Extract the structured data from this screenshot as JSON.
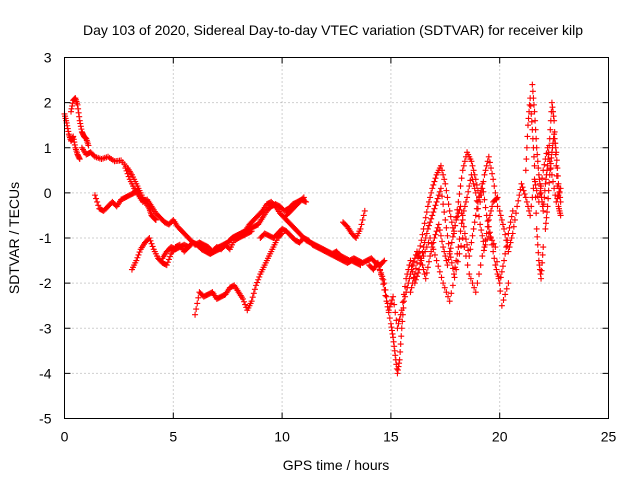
{
  "chart_data": {
    "type": "scatter",
    "title": "Day 103 of 2020, Sidereal Day-to-day VTEC variation (SDTVAR) for receiver kilp",
    "xlabel": "GPS time / hours",
    "ylabel": "SDTVAR / TECUs",
    "xlim": [
      0,
      25
    ],
    "ylim": [
      -5,
      3
    ],
    "xticks": [
      0,
      5,
      10,
      15,
      20,
      25
    ],
    "yticks": [
      -5,
      -4,
      -3,
      -2,
      -1,
      0,
      1,
      2,
      3
    ],
    "grid": true,
    "marker": "+",
    "series": [
      {
        "name": "SDTVAR",
        "color": "#ff0000",
        "segments": [
          {
            "x": [
              0.0,
              0.1,
              0.2,
              0.3,
              0.4,
              0.5,
              0.6,
              0.7
            ],
            "y": [
              1.75,
              1.55,
              1.3,
              1.15,
              1.25,
              1.0,
              0.85,
              0.75
            ]
          },
          {
            "x": [
              0.3,
              0.4,
              0.5,
              0.6,
              0.7,
              0.8,
              0.9,
              1.0,
              1.1
            ],
            "y": [
              1.8,
              2.05,
              2.1,
              1.95,
              1.6,
              1.35,
              1.25,
              1.2,
              1.05
            ]
          },
          {
            "x": [
              0.8,
              1.0,
              1.2,
              1.4,
              1.7,
              2.0,
              2.3,
              2.6,
              2.9,
              3.1,
              3.3,
              3.5,
              3.7,
              3.9,
              4.0,
              4.1,
              4.2
            ],
            "y": [
              1.0,
              0.85,
              0.9,
              0.8,
              0.75,
              0.8,
              0.7,
              0.72,
              0.55,
              0.4,
              0.2,
              0.0,
              -0.2,
              -0.35,
              -0.5,
              -0.55,
              -0.6
            ]
          },
          {
            "x": [
              2.8,
              3.0,
              3.2,
              3.4,
              3.6,
              3.8,
              4.0,
              4.2,
              4.4,
              4.6,
              4.8,
              5.0,
              5.2,
              5.4,
              5.6,
              5.8,
              6.0,
              6.2,
              6.4,
              6.6,
              6.8,
              7.0,
              7.2,
              7.4,
              7.6,
              7.8,
              8.0,
              8.2,
              8.4,
              8.6
            ],
            "y": [
              0.55,
              0.3,
              0.1,
              -0.05,
              -0.2,
              -0.15,
              -0.3,
              -0.45,
              -0.55,
              -0.65,
              -0.7,
              -0.6,
              -0.75,
              -0.85,
              -0.95,
              -1.05,
              -1.15,
              -1.1,
              -1.15,
              -1.2,
              -1.3,
              -1.2,
              -1.25,
              -1.15,
              -1.25,
              -1.05,
              -1.0,
              -0.95,
              -0.9,
              -0.85
            ]
          },
          {
            "x": [
              1.4,
              1.6,
              1.8,
              2.0,
              2.2,
              2.4,
              2.6,
              2.8,
              3.0,
              3.2,
              3.4
            ],
            "y": [
              -0.05,
              -0.35,
              -0.4,
              -0.3,
              -0.2,
              -0.3,
              -0.15,
              -0.1,
              -0.05,
              0.0,
              0.05
            ]
          },
          {
            "x": [
              3.1,
              3.3,
              3.5,
              3.7,
              3.9,
              4.1,
              4.3,
              4.5,
              4.7,
              4.9,
              5.1,
              5.3,
              5.5,
              5.7,
              5.9,
              6.1,
              6.3,
              6.5,
              6.7,
              6.9,
              7.1,
              7.3,
              7.5,
              7.7,
              7.9,
              8.1,
              8.3,
              8.5,
              8.7,
              8.9,
              9.1,
              9.3,
              9.5,
              9.7,
              9.9,
              10.1,
              10.3,
              10.5,
              10.7,
              10.9,
              11.1
            ],
            "y": [
              -1.7,
              -1.5,
              -1.25,
              -1.1,
              -1.0,
              -1.25,
              -1.45,
              -1.55,
              -1.6,
              -1.35,
              -1.2,
              -1.15,
              -1.3,
              -1.2,
              -1.1,
              -1.15,
              -1.2,
              -1.3,
              -1.35,
              -1.25,
              -1.2,
              -1.15,
              -1.1,
              -1.0,
              -0.95,
              -0.9,
              -0.85,
              -0.8,
              -0.75,
              -0.7,
              -0.55,
              -0.4,
              -0.3,
              -0.25,
              -0.3,
              -0.4,
              -0.35,
              -0.25,
              -0.2,
              -0.15,
              -0.2
            ]
          },
          {
            "x": [
              4.5,
              4.7,
              4.9,
              5.1,
              5.3,
              5.5,
              5.7,
              5.9,
              6.1,
              6.3,
              6.5,
              6.7,
              6.9,
              7.1,
              7.3,
              7.5,
              7.7,
              7.9,
              8.1,
              8.3,
              8.5,
              8.7,
              8.9,
              9.1,
              9.3,
              9.5,
              9.7,
              9.9,
              10.1,
              10.3,
              10.5,
              10.7,
              10.9,
              11.1,
              11.3,
              11.5,
              11.7,
              11.9,
              12.1,
              12.3,
              12.5,
              12.7,
              12.9,
              13.1,
              13.3,
              13.5,
              13.7,
              13.9,
              14.1,
              14.3,
              14.5,
              14.7
            ],
            "y": [
              -1.45,
              -1.3,
              -1.2,
              -1.25,
              -1.2,
              -1.15,
              -1.2,
              -1.1,
              -1.15,
              -1.25,
              -1.3,
              -1.35,
              -1.3,
              -1.25,
              -1.2,
              -1.1,
              -1.0,
              -0.95,
              -0.9,
              -0.85,
              -0.7,
              -0.6,
              -0.5,
              -0.4,
              -0.25,
              -0.2,
              -0.3,
              -0.45,
              -0.55,
              -0.65,
              -0.75,
              -0.85,
              -0.95,
              -1.05,
              -1.1,
              -1.15,
              -1.2,
              -1.25,
              -1.3,
              -1.35,
              -1.3,
              -1.4,
              -1.45,
              -1.5,
              -1.45,
              -1.5,
              -1.55,
              -1.5,
              -1.45,
              -1.55,
              -1.6,
              -1.5
            ]
          },
          {
            "x": [
              9.0,
              9.2,
              9.4,
              9.6,
              9.8,
              10.0,
              10.2,
              10.4,
              10.6,
              10.8,
              11.0,
              11.2,
              11.4,
              11.6,
              11.8,
              12.0,
              12.2,
              12.4,
              12.6,
              12.8,
              13.0,
              13.2,
              13.4,
              13.6
            ],
            "y": [
              -1.0,
              -0.9,
              -0.95,
              -1.0,
              -0.9,
              -0.8,
              -0.85,
              -0.95,
              -1.05,
              -1.1,
              -1.0,
              -1.05,
              -1.15,
              -1.2,
              -1.25,
              -1.3,
              -1.35,
              -1.4,
              -1.45,
              -1.5,
              -1.55,
              -1.5,
              -1.55,
              -1.6
            ]
          },
          {
            "x": [
              6.0,
              6.2,
              6.4,
              6.6,
              6.8,
              7.0,
              7.2,
              7.4,
              7.6,
              7.8,
              8.0,
              8.2,
              8.4,
              8.6,
              8.8,
              9.0,
              9.2,
              9.4,
              9.6,
              9.8,
              10.0
            ],
            "y": [
              -2.7,
              -2.2,
              -2.3,
              -2.25,
              -2.2,
              -2.35,
              -2.3,
              -2.25,
              -2.1,
              -2.05,
              -2.2,
              -2.35,
              -2.6,
              -2.4,
              -2.05,
              -1.8,
              -1.6,
              -1.4,
              -1.2,
              -1.0,
              -0.9
            ]
          },
          {
            "x": [
              10.2,
              10.4,
              10.6,
              10.8,
              11.0
            ],
            "y": [
              -0.5,
              -0.4,
              -0.3,
              -0.2,
              -0.1
            ]
          },
          {
            "x": [
              12.8,
              13.0,
              13.2,
              13.4,
              13.6,
              13.8
            ],
            "y": [
              -0.65,
              -0.75,
              -0.9,
              -1.0,
              -0.8,
              -0.4
            ]
          },
          {
            "x": [
              14.0,
              14.2,
              14.4,
              14.6,
              14.8,
              15.0,
              15.1,
              15.2,
              15.3,
              15.4,
              15.5,
              15.6,
              15.8,
              16.0,
              16.2,
              16.4,
              16.6,
              16.8,
              17.0,
              17.2,
              17.4,
              17.6,
              17.8,
              18.0,
              18.2,
              18.4,
              18.6,
              18.8,
              19.0,
              19.2,
              19.4,
              19.6,
              19.8,
              20.0,
              20.2,
              20.4,
              20.6
            ],
            "y": [
              -1.6,
              -1.7,
              -1.55,
              -1.9,
              -2.4,
              -2.9,
              -3.2,
              -3.6,
              -4.0,
              -3.7,
              -3.0,
              -2.4,
              -2.0,
              -1.6,
              -1.3,
              -1.5,
              -1.9,
              -1.4,
              -1.0,
              -0.7,
              -1.2,
              -1.6,
              -1.1,
              -0.6,
              -0.3,
              -0.9,
              -1.4,
              -0.8,
              -0.2,
              0.2,
              -0.5,
              -1.0,
              -1.6,
              -2.0,
              -1.5,
              -0.9,
              -0.4
            ]
          },
          {
            "x": [
              14.5,
              14.7,
              14.9,
              15.1,
              15.3,
              15.5,
              15.7,
              15.9,
              16.1,
              16.3,
              16.5,
              16.7,
              16.9,
              17.1,
              17.3,
              17.5,
              17.7,
              17.9,
              18.1,
              18.3,
              18.5,
              18.7,
              18.9,
              19.1,
              19.3,
              19.5,
              19.7,
              19.9
            ],
            "y": [
              -1.7,
              -2.0,
              -2.6,
              -2.3,
              -3.0,
              -2.6,
              -1.9,
              -1.5,
              -2.0,
              -1.7,
              -1.2,
              -0.8,
              -0.5,
              -0.2,
              0.1,
              -0.6,
              -1.3,
              -1.8,
              -1.2,
              -0.5,
              -0.1,
              0.4,
              0.0,
              -0.7,
              -1.2,
              -0.6,
              -0.2,
              -0.1
            ]
          },
          {
            "x": [
              15.9,
              16.1,
              16.3,
              16.5,
              16.7,
              16.9,
              17.1,
              17.3,
              17.5,
              17.7,
              17.9,
              18.1,
              18.3,
              18.5,
              18.7,
              18.9,
              19.1,
              19.3,
              19.5,
              19.7,
              19.9
            ],
            "y": [
              -2.2,
              -1.8,
              -1.3,
              -0.8,
              -0.3,
              0.1,
              0.4,
              0.6,
              0.2,
              -0.4,
              -0.9,
              -0.2,
              0.5,
              0.9,
              0.7,
              0.3,
              -0.2,
              0.4,
              0.8,
              0.3,
              -0.3
            ]
          },
          {
            "x": [
              16.5,
              16.8,
              17.1,
              17.4,
              17.7,
              18.0,
              18.3,
              18.6,
              18.9,
              19.2,
              19.5,
              19.8,
              20.1,
              20.4
            ],
            "y": [
              -1.4,
              -1.0,
              -1.5,
              -2.0,
              -2.4,
              -1.7,
              -1.0,
              -1.8,
              -2.2,
              -1.4,
              -0.9,
              -1.2,
              -2.5,
              -2.0
            ]
          },
          {
            "x": [
              20.0,
              20.2,
              20.4,
              20.6,
              20.8,
              21.0,
              21.2,
              21.4,
              21.6,
              21.8,
              22.0,
              22.2,
              22.4,
              22.6,
              22.8
            ],
            "y": [
              -0.4,
              -0.8,
              -1.3,
              -0.9,
              -0.3,
              0.2,
              -0.1,
              -0.5,
              0.3,
              -0.2,
              0.5,
              1.0,
              0.4,
              -0.2,
              0.1
            ]
          },
          {
            "x": [
              21.2,
              21.3,
              21.4,
              21.5,
              21.6,
              21.7,
              21.8,
              21.9,
              22.0
            ],
            "y": [
              0.5,
              1.5,
              2.1,
              1.4,
              0.6,
              -0.8,
              -1.5,
              -1.9,
              -1.2
            ]
          },
          {
            "x": [
              21.5,
              21.6,
              21.7,
              21.8,
              21.9,
              22.0,
              22.1,
              22.2,
              22.3,
              22.4,
              22.5,
              22.6,
              22.7,
              22.8
            ],
            "y": [
              2.4,
              1.8,
              1.0,
              0.4,
              0.0,
              -0.4,
              0.2,
              0.6,
              1.2,
              2.0,
              1.6,
              0.6,
              -0.3,
              -0.5
            ]
          },
          {
            "x": [
              22.1,
              22.2,
              22.3,
              22.4,
              22.5,
              22.6,
              22.7,
              22.8
            ],
            "y": [
              -0.8,
              -0.3,
              0.4,
              0.9,
              1.3,
              0.9,
              0.2,
              -0.2
            ]
          }
        ]
      }
    ]
  }
}
